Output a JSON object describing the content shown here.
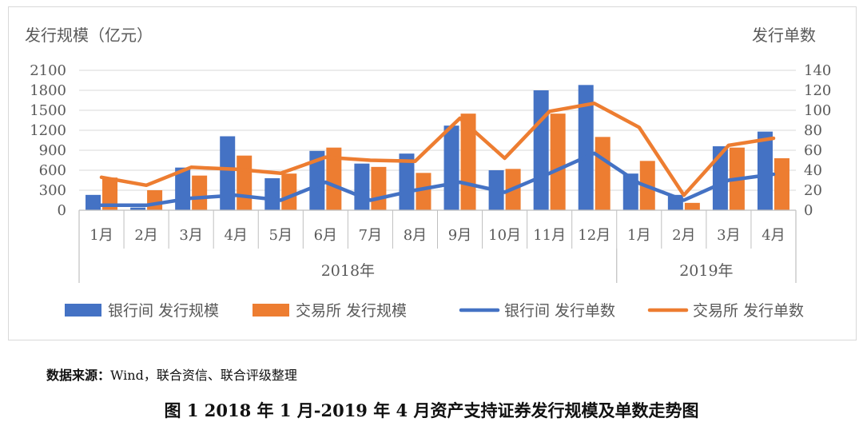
{
  "chart_data": {
    "type": "bar",
    "title": "",
    "y_left_label": "发行规模（亿元）",
    "y_right_label": "发行单数",
    "y_left_ticks": [
      "0",
      "300",
      "600",
      "900",
      "1200",
      "1500",
      "1800",
      "2100"
    ],
    "y_right_ticks": [
      "0",
      "20",
      "40",
      "60",
      "80",
      "100",
      "120",
      "140"
    ],
    "ylim_left": [
      0,
      2100
    ],
    "ylim_right": [
      0,
      140
    ],
    "categories": [
      "1月",
      "2月",
      "3月",
      "4月",
      "5月",
      "6月",
      "7月",
      "8月",
      "9月",
      "10月",
      "11月",
      "12月",
      "1月",
      "2月",
      "3月",
      "4月"
    ],
    "year_groups": [
      {
        "label": "2018年",
        "count": 12
      },
      {
        "label": "2019年",
        "count": 4
      }
    ],
    "series": [
      {
        "name": "银行间 发行规模",
        "type": "bar",
        "axis": "left",
        "color": "#4472C4",
        "values": [
          230,
          40,
          640,
          1110,
          480,
          890,
          700,
          850,
          1270,
          600,
          1800,
          1880,
          550,
          230,
          960,
          1180
        ]
      },
      {
        "name": "交易所 发行规模",
        "type": "bar",
        "axis": "left",
        "color": "#ED7D31",
        "values": [
          490,
          300,
          520,
          820,
          550,
          940,
          650,
          560,
          1450,
          620,
          1450,
          1100,
          740,
          110,
          940,
          780
        ]
      },
      {
        "name": "银行间 发行单数",
        "type": "line",
        "axis": "right",
        "color": "#4472C4",
        "values": [
          5,
          5,
          12,
          15,
          10,
          28,
          10,
          20,
          28,
          18,
          37,
          57,
          27,
          10,
          30,
          36
        ]
      },
      {
        "name": "交易所 发行单数",
        "type": "line",
        "axis": "right",
        "color": "#ED7D31",
        "values": [
          33,
          25,
          43,
          41,
          37,
          53,
          50,
          49,
          92,
          52,
          99,
          107,
          83,
          15,
          65,
          72
        ]
      }
    ],
    "grid": true,
    "legend_position": "bottom"
  },
  "source": {
    "label": "数据来源：",
    "text": "Wind，联合资信、联合评级整理"
  },
  "caption": "图 1    2018 年 1 月-2019 年 4 月资产支持证券发行规模及单数走势图"
}
